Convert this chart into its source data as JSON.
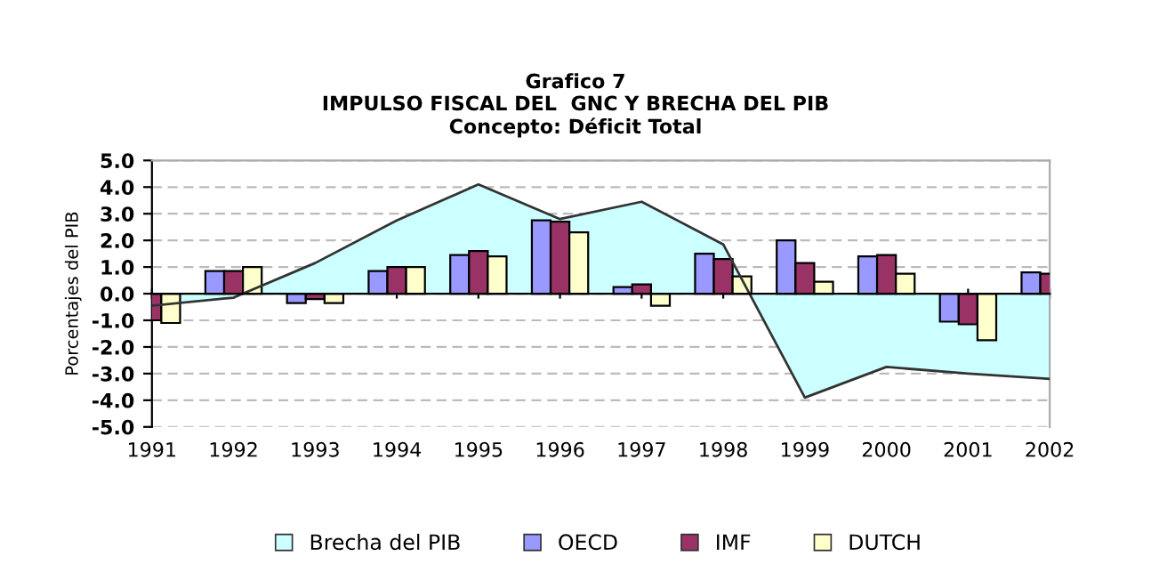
{
  "chart_data": {
    "type": "bar",
    "title": "Grafico 7\nIMPULSO FISCAL DEL  GNC Y BRECHA DEL PIB\nConcepto: Déficit Total",
    "ylabel": "Porcentajes del PIB",
    "categories": [
      "1991",
      "1992",
      "1993",
      "1994",
      "1995",
      "1996",
      "1997",
      "1998",
      "1999",
      "2000",
      "2001",
      "2002"
    ],
    "series": [
      {
        "name": "Brecha del PIB",
        "type": "area",
        "color": "#ccffff",
        "values": [
          -0.45,
          -0.15,
          1.15,
          2.75,
          4.1,
          2.8,
          3.45,
          1.85,
          -3.9,
          -2.75,
          -3.0,
          -3.2
        ]
      },
      {
        "name": "OECD",
        "color": "#9999ff",
        "values": [
          null,
          0.85,
          -0.35,
          0.85,
          1.45,
          2.75,
          0.25,
          1.5,
          2.0,
          1.4,
          -1.05,
          0.8
        ]
      },
      {
        "name": "IMF",
        "color": "#993366",
        "values": [
          -1.0,
          0.85,
          -0.2,
          1.0,
          1.6,
          2.7,
          0.35,
          1.3,
          1.15,
          1.45,
          -1.15,
          0.75
        ]
      },
      {
        "name": "DUTCH",
        "color": "#ffffcc",
        "values": [
          -1.1,
          1.0,
          -0.35,
          1.0,
          1.4,
          2.3,
          -0.45,
          0.65,
          0.45,
          0.75,
          -1.75,
          null
        ]
      }
    ],
    "ylim": [
      -5,
      5
    ],
    "yticks": [
      {
        "value": -5,
        "label": "-5.0"
      },
      {
        "value": -4,
        "label": "-4.0"
      },
      {
        "value": -3,
        "label": "-3.0"
      },
      {
        "value": -2,
        "label": "-2.0"
      },
      {
        "value": -1,
        "label": "-1.0"
      },
      {
        "value": 0,
        "label": "0.0"
      },
      {
        "value": 1,
        "label": "1.0"
      },
      {
        "value": 2,
        "label": "2.0"
      },
      {
        "value": 3,
        "label": "3.0"
      },
      {
        "value": 4,
        "label": "4.0"
      },
      {
        "value": 5,
        "label": "5.0"
      }
    ],
    "grid": "y",
    "legend": "bottom"
  }
}
